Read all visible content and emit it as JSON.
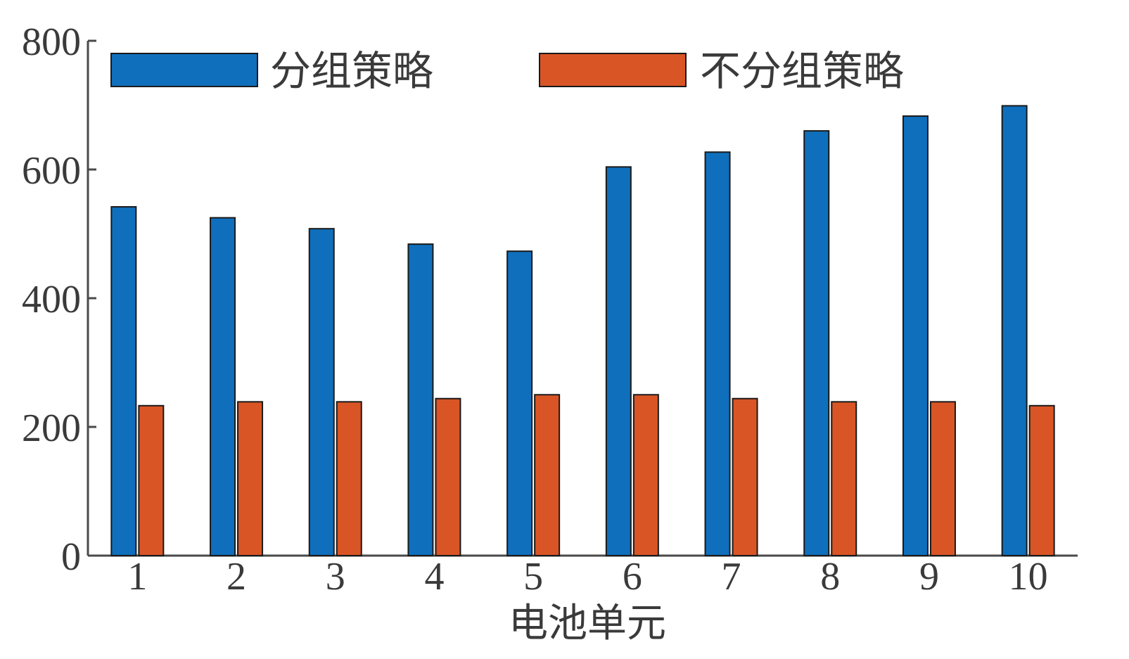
{
  "chart_data": {
    "type": "bar",
    "title": "",
    "xlabel": "电池单元",
    "ylabel": "",
    "categories": [
      "1",
      "2",
      "3",
      "4",
      "5",
      "6",
      "7",
      "8",
      "9",
      "10"
    ],
    "ylim": [
      0,
      800
    ],
    "yticks": [
      0,
      200,
      400,
      600,
      800
    ],
    "grid": false,
    "legend_position": "top",
    "series": [
      {
        "name": "分组策略",
        "color": "#0f6fbc",
        "values": [
          542,
          525,
          508,
          484,
          473,
          604,
          627,
          660,
          683,
          699
        ]
      },
      {
        "name": "不分组策略",
        "color": "#d95526",
        "values": [
          233,
          239,
          239,
          244,
          250,
          250,
          244,
          239,
          239,
          233
        ]
      }
    ]
  }
}
